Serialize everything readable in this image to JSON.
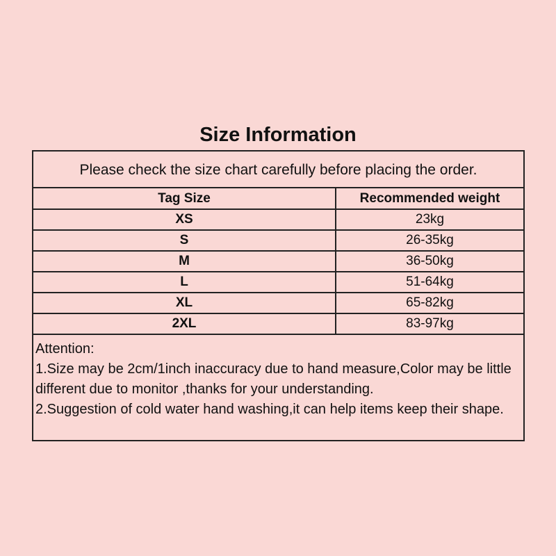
{
  "title": "Size Information",
  "notice": "Please check the size chart carefully before placing the order.",
  "columns": [
    "Tag Size",
    "Recommended weight"
  ],
  "rows": [
    [
      "XS",
      "23kg"
    ],
    [
      "S",
      "26-35kg"
    ],
    [
      "M",
      "36-50kg"
    ],
    [
      "L",
      "51-64kg"
    ],
    [
      "XL",
      "65-82kg"
    ],
    [
      "2XL",
      "83-97kg"
    ]
  ],
  "attention": {
    "heading": "Attention:",
    "lines": [
      "1.Size may be 2cm/1inch inaccuracy due to hand measure,Color may be little different due to monitor ,thanks for your understanding.",
      "2.Suggestion of cold water hand washing,it can help items keep their shape."
    ]
  },
  "colors": {
    "background": "#fad8d5",
    "border": "#222222"
  }
}
